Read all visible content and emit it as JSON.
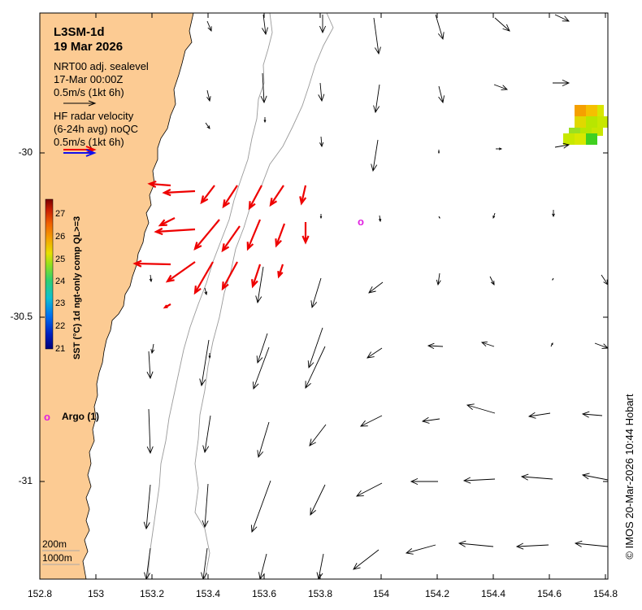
{
  "title": {
    "line1": "L3SM-1d",
    "line2": "19 Mar 2026"
  },
  "legend": {
    "nrt_line1": "NRT00 adj. sealevel",
    "nrt_line2": "17-Mar 00:00Z",
    "nrt_scale": "0.5m/s (1kt 6h)",
    "hf_line1": "HF radar velocity",
    "hf_line2": "(6-24h avg) noQC",
    "hf_scale": "0.5m/s (1kt 6h)"
  },
  "colorbar": {
    "label": "SST (°C) 1d ngt-only comp QL>=3",
    "ticks": [
      "27",
      "26",
      "25",
      "24",
      "23",
      "22",
      "21"
    ],
    "colors": [
      "#7a0000",
      "#c81e00",
      "#f06000",
      "#f5a000",
      "#e8d000",
      "#b8e600",
      "#60e020",
      "#20d080",
      "#10c0d0",
      "#0090f0",
      "#0040d0",
      "#0010a0",
      "#00007a"
    ]
  },
  "axes": {
    "x_ticks": [
      "152.8",
      "153",
      "153.2",
      "153.4",
      "153.6",
      "153.8",
      "154",
      "154.2",
      "154.4",
      "154.6",
      "154.8"
    ],
    "y_ticks": [
      "-30",
      "-30.5",
      "-31"
    ]
  },
  "argo": {
    "marker": "o",
    "label": "Argo (1)"
  },
  "depth_labels": [
    "200m",
    "1000m"
  ],
  "credit": "© IMOS 20-Mar-2026 10:44 Hobart",
  "colors": {
    "land": "#fccb93",
    "radar": "#ee0000",
    "argo": "#e01ee0",
    "model_arrow": "#000000",
    "contour": "#9a9a9a"
  }
}
